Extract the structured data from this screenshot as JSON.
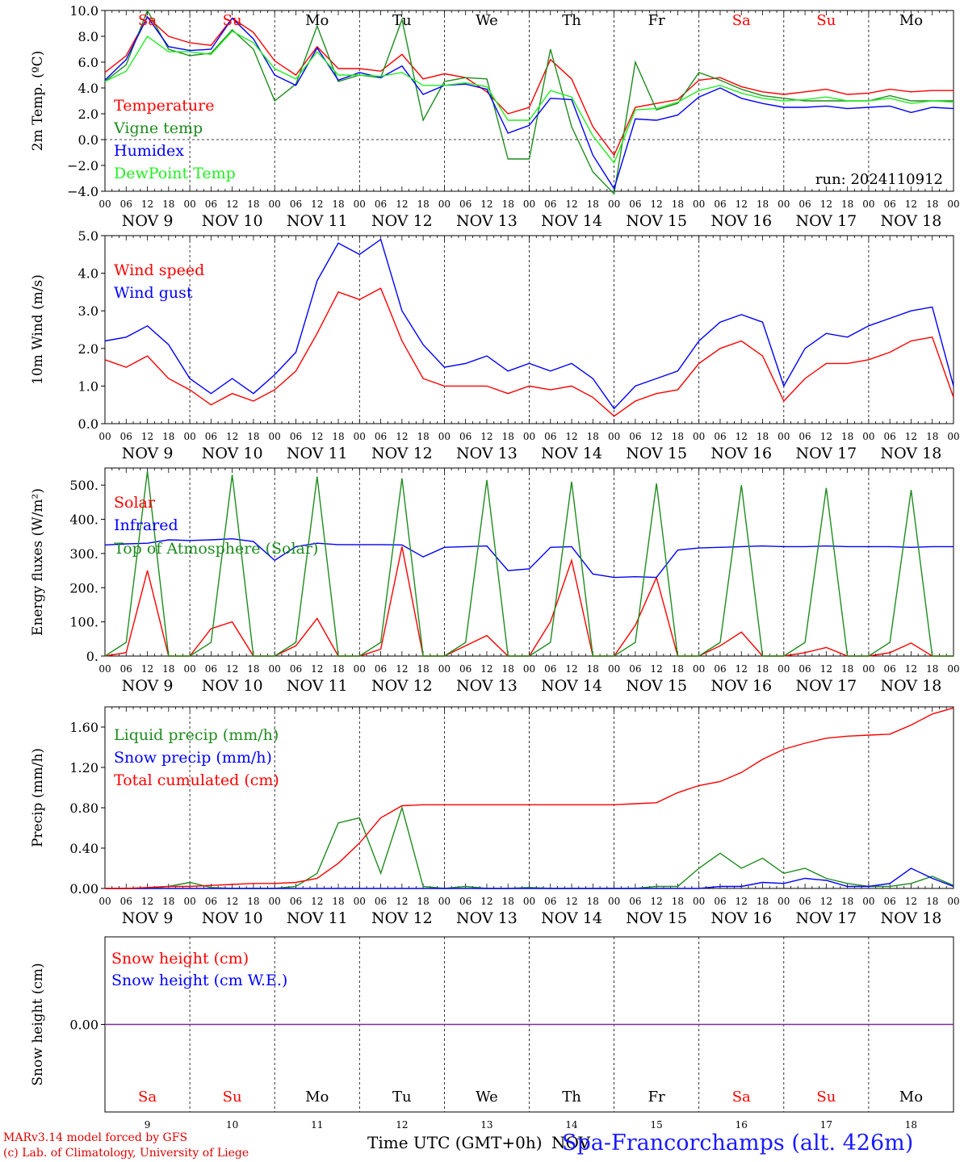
{
  "colors": {
    "red": "#ff0000",
    "green": "#1e8c1e",
    "blue": "#0000ff",
    "lime": "#22ee22",
    "purple": "#7a2a9a",
    "black": "#000000",
    "weekend": "#ff0000"
  },
  "days": [
    "9",
    "10",
    "11",
    "12",
    "13",
    "14",
    "15",
    "16",
    "17",
    "18"
  ],
  "nov_label": "NOV",
  "weekdays": [
    "Sa",
    "Su",
    "Mo",
    "Tu",
    "We",
    "Th",
    "Fr",
    "Sa",
    "Su",
    "Mo"
  ],
  "weekday_is_weekend": [
    true,
    true,
    false,
    false,
    false,
    false,
    false,
    true,
    true,
    false
  ],
  "hour_ticks": [
    "00",
    "06",
    "12",
    "18"
  ],
  "final_hour": "00",
  "run_label": "run: 2024110912",
  "footer": {
    "credit_line1": "MARv3.14 model forced by GFS",
    "credit_line2": "(c) Lab. of Climatology, University of Liege",
    "x_title": "Time UTC (GMT+0h)",
    "x_unit": "NOV",
    "station": "Spa-Francorchamps (alt. 426m)"
  },
  "chart_data": [
    {
      "type": "line",
      "ylabel": "2m Temp. (ºC)",
      "ylim": [
        -4,
        10
      ],
      "yticks": [
        {
          "v": 10,
          "t": "10.0"
        },
        {
          "v": 8,
          "t": "8.0"
        },
        {
          "v": 6,
          "t": "6.0"
        },
        {
          "v": 4,
          "t": "4.0"
        },
        {
          "v": 2,
          "t": "2.0"
        },
        {
          "v": 0,
          "t": "0.0"
        },
        {
          "v": -2,
          "t": "−2.0"
        },
        {
          "v": -4,
          "t": "−4.0"
        }
      ],
      "zero_line": true,
      "x_hours": [
        0,
        6,
        12,
        18,
        24,
        30,
        36,
        42,
        48,
        54,
        60,
        66,
        72,
        78,
        84,
        90,
        96,
        102,
        108,
        114,
        120,
        126,
        132,
        138,
        144,
        150,
        156,
        162,
        168,
        174,
        180,
        186,
        192,
        198,
        204,
        210,
        216,
        222,
        228,
        234,
        240
      ],
      "series": [
        {
          "name": "Temperature",
          "color": "red",
          "values": [
            5.2,
            6.5,
            9.5,
            8,
            7.5,
            7.3,
            9.4,
            8.3,
            6.1,
            5,
            7.2,
            5.5,
            5.5,
            5.3,
            6.6,
            4.7,
            5.1,
            4.8,
            3.7,
            2,
            2.5,
            6.2,
            4.7,
            1,
            -1.2,
            2.5,
            2.8,
            3.1,
            4.6,
            4.8,
            4.1,
            3.7,
            3.5,
            3.7,
            3.9,
            3.5,
            3.6,
            3.9,
            3.7,
            3.8,
            3.8
          ]
        },
        {
          "name": "Vigne temp",
          "color": "green",
          "values": [
            4.5,
            5.8,
            10,
            7,
            6.5,
            6.7,
            8.5,
            7,
            3,
            4.3,
            8.8,
            4.5,
            5,
            4.8,
            9.3,
            1.5,
            4.5,
            4.8,
            4.7,
            -1.5,
            -1.5,
            7,
            1,
            -2.5,
            -4.2,
            6,
            2.3,
            2.8,
            5.2,
            4.6,
            3.9,
            3.4,
            3.2,
            3,
            3,
            3,
            3,
            3.4,
            3,
            3,
            3
          ]
        },
        {
          "name": "Humidex",
          "color": "blue",
          "values": [
            4.6,
            6.2,
            9.5,
            7.2,
            6.9,
            7,
            9.4,
            7.8,
            5,
            4.2,
            7.1,
            4.6,
            5.2,
            4.8,
            5.7,
            3.5,
            4.2,
            4.3,
            3.9,
            0.5,
            1.1,
            3.2,
            3.1,
            -1.2,
            -3.8,
            1.6,
            1.5,
            1.9,
            3.3,
            4,
            3.2,
            2.8,
            2.5,
            2.5,
            2.6,
            2.4,
            2.5,
            2.6,
            2.1,
            2.5,
            2.4
          ]
        },
        {
          "name": "DewPoint Temp",
          "color": "lime",
          "values": [
            4.5,
            5.3,
            8,
            6.8,
            6.8,
            6.6,
            8.4,
            7.5,
            5.5,
            4.7,
            6.8,
            5,
            5,
            4.9,
            5.2,
            4.2,
            4.2,
            4.4,
            4.1,
            1.5,
            1.5,
            3.8,
            3.3,
            0.3,
            -1.8,
            2.3,
            2.4,
            2.9,
            3.8,
            4.2,
            3.6,
            3.2,
            3,
            3.1,
            3.3,
            3,
            3,
            3.2,
            2.8,
            3,
            2.9
          ]
        }
      ]
    },
    {
      "type": "line",
      "ylabel": "10m Wind (m/s)",
      "ylim": [
        0,
        5
      ],
      "yticks": [
        {
          "v": 5,
          "t": "5.0"
        },
        {
          "v": 4,
          "t": "4.0"
        },
        {
          "v": 3,
          "t": "3.0"
        },
        {
          "v": 2,
          "t": "2.0"
        },
        {
          "v": 1,
          "t": "1.0"
        },
        {
          "v": 0,
          "t": "0.0"
        }
      ],
      "x_hours": [
        0,
        6,
        12,
        18,
        24,
        30,
        36,
        42,
        48,
        54,
        60,
        66,
        72,
        78,
        84,
        90,
        96,
        102,
        108,
        114,
        120,
        126,
        132,
        138,
        144,
        150,
        156,
        162,
        168,
        174,
        180,
        186,
        192,
        198,
        204,
        210,
        216,
        222,
        228,
        234,
        240
      ],
      "series": [
        {
          "name": "Wind speed",
          "color": "red",
          "values": [
            1.7,
            1.5,
            1.8,
            1.2,
            0.9,
            0.5,
            0.8,
            0.6,
            0.9,
            1.4,
            2.4,
            3.5,
            3.3,
            3.6,
            2.2,
            1.2,
            1,
            1,
            1,
            0.8,
            1,
            0.9,
            1,
            0.7,
            0.2,
            0.6,
            0.8,
            0.9,
            1.6,
            2,
            2.2,
            1.8,
            0.6,
            1.2,
            1.6,
            1.6,
            1.7,
            1.9,
            2.2,
            2.3,
            0.7
          ]
        },
        {
          "name": "Wind gust",
          "color": "blue",
          "values": [
            2.2,
            2.3,
            2.6,
            2.1,
            1.2,
            0.8,
            1.2,
            0.8,
            1.3,
            1.9,
            3.8,
            4.8,
            4.5,
            4.9,
            3,
            2.1,
            1.5,
            1.6,
            1.8,
            1.4,
            1.6,
            1.4,
            1.6,
            1.2,
            0.4,
            1,
            1.2,
            1.4,
            2.2,
            2.7,
            2.9,
            2.7,
            1,
            2,
            2.4,
            2.3,
            2.6,
            2.8,
            3,
            3.1,
            1
          ]
        }
      ]
    },
    {
      "type": "line",
      "ylabel": "Energy fluxes (W/m²)",
      "ylim": [
        0,
        550
      ],
      "yticks": [
        {
          "v": 500,
          "t": "500."
        },
        {
          "v": 400,
          "t": "400."
        },
        {
          "v": 300,
          "t": "300."
        },
        {
          "v": 200,
          "t": "200."
        },
        {
          "v": 100,
          "t": "100."
        },
        {
          "v": 0,
          "t": "0."
        }
      ],
      "x_hours": [
        0,
        6,
        12,
        18,
        24,
        30,
        36,
        42,
        48,
        54,
        60,
        66,
        72,
        78,
        84,
        90,
        96,
        102,
        108,
        114,
        120,
        126,
        132,
        138,
        144,
        150,
        156,
        162,
        168,
        174,
        180,
        186,
        192,
        198,
        204,
        210,
        216,
        222,
        228,
        234,
        240
      ],
      "series": [
        {
          "name": "Solar",
          "color": "red",
          "values": [
            0,
            10,
            250,
            0,
            0,
            80,
            100,
            0,
            0,
            30,
            110,
            0,
            0,
            20,
            320,
            0,
            0,
            30,
            60,
            0,
            0,
            100,
            280,
            0,
            0,
            90,
            230,
            0,
            0,
            30,
            70,
            0,
            0,
            10,
            25,
            0,
            0,
            10,
            38,
            0,
            0
          ]
        },
        {
          "name": "Infrared",
          "color": "blue",
          "values": [
            325,
            328,
            330,
            340,
            338,
            340,
            343,
            335,
            280,
            320,
            330,
            326,
            326,
            326,
            325,
            290,
            318,
            320,
            322,
            250,
            255,
            318,
            320,
            240,
            230,
            232,
            230,
            310,
            316,
            318,
            320,
            322,
            320,
            320,
            322,
            320,
            320,
            320,
            318,
            320,
            320
          ]
        },
        {
          "name": "Top of Atmosphere (Solar)",
          "color": "green",
          "values": [
            0,
            40,
            540,
            0,
            0,
            40,
            530,
            0,
            0,
            40,
            525,
            0,
            0,
            40,
            520,
            0,
            0,
            40,
            515,
            0,
            0,
            40,
            510,
            0,
            0,
            40,
            505,
            0,
            0,
            40,
            500,
            0,
            0,
            40,
            492,
            0,
            0,
            40,
            486,
            0,
            0
          ]
        }
      ]
    },
    {
      "type": "line",
      "ylabel": "Precip (mm/h)",
      "ylim": [
        0,
        1.8
      ],
      "yticks": [
        {
          "v": 1.6,
          "t": "1.60"
        },
        {
          "v": 1.2,
          "t": "1.20"
        },
        {
          "v": 0.8,
          "t": "0.80"
        },
        {
          "v": 0.4,
          "t": "0.40"
        },
        {
          "v": 0,
          "t": "0.00"
        }
      ],
      "x_hours": [
        0,
        6,
        12,
        18,
        24,
        30,
        36,
        42,
        48,
        54,
        60,
        66,
        72,
        78,
        84,
        90,
        96,
        102,
        108,
        114,
        120,
        126,
        132,
        138,
        144,
        150,
        156,
        162,
        168,
        174,
        180,
        186,
        192,
        198,
        204,
        210,
        216,
        222,
        228,
        234,
        240
      ],
      "series": [
        {
          "name": "Liquid precip (mm/h)",
          "color": "green",
          "values": [
            0,
            0,
            0,
            0.02,
            0.06,
            0.01,
            0,
            0,
            0,
            0.02,
            0.15,
            0.65,
            0.7,
            0.15,
            0.8,
            0.02,
            0,
            0.02,
            0,
            0,
            0.01,
            0,
            0,
            0,
            0,
            0,
            0.02,
            0.02,
            0.2,
            0.35,
            0.2,
            0.3,
            0.15,
            0.2,
            0.1,
            0.05,
            0.02,
            0.02,
            0.05,
            0.12,
            0.03
          ]
        },
        {
          "name": "Snow precip (mm/h)",
          "color": "blue",
          "values": [
            0,
            0,
            0,
            0,
            0,
            0,
            0,
            0,
            0,
            0,
            0,
            0,
            0,
            0,
            0,
            0,
            0,
            0,
            0,
            0,
            0,
            0,
            0,
            0,
            0,
            0,
            0,
            0,
            0,
            0.02,
            0.02,
            0.06,
            0.05,
            0.1,
            0.08,
            0.02,
            0.02,
            0.05,
            0.2,
            0.1,
            0.02
          ]
        },
        {
          "name": "Total cumulated (cm)",
          "color": "red",
          "values": [
            0,
            0,
            0.01,
            0.02,
            0.02,
            0.03,
            0.04,
            0.05,
            0.05,
            0.06,
            0.1,
            0.25,
            0.45,
            0.7,
            0.82,
            0.83,
            0.83,
            0.83,
            0.83,
            0.83,
            0.83,
            0.83,
            0.83,
            0.83,
            0.83,
            0.84,
            0.85,
            0.95,
            1.02,
            1.06,
            1.15,
            1.28,
            1.38,
            1.44,
            1.49,
            1.51,
            1.52,
            1.53,
            1.62,
            1.73,
            1.79
          ]
        }
      ]
    },
    {
      "type": "line",
      "ylabel": "Snow height (cm)",
      "ylim": [
        -1,
        1
      ],
      "yticks": [
        {
          "v": 0,
          "t": "0.00"
        }
      ],
      "x_hours": [
        0,
        240
      ],
      "series": [
        {
          "name": "Snow height (cm)",
          "color": "red",
          "values": [
            0,
            0
          ]
        },
        {
          "name": "Snow height (cm W.E.)",
          "color": "blue",
          "values": [
            0,
            0
          ]
        }
      ]
    }
  ]
}
